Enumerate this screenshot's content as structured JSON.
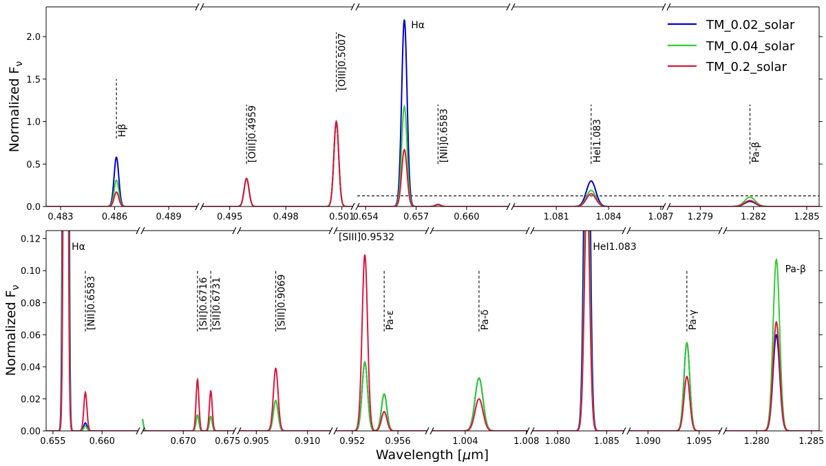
{
  "figure": {
    "ylabel": "Normalized F",
    "ylabel_sub": "ν",
    "xlabel": "Wavelength [",
    "xlabel_mu": "μ",
    "xlabel_end": "m]"
  },
  "legend_entries": [
    {
      "name": "TM_0.02_solar",
      "color": "#0000c8"
    },
    {
      "name": "TM_0.04_solar",
      "color": "#32cd32"
    },
    {
      "name": "TM_0.2_solar",
      "color": "#dc143c"
    }
  ],
  "chart_data": [
    {
      "type": "line",
      "ylim": [
        0,
        2.35
      ],
      "yticks": [
        "0.0",
        "0.5",
        "1.0",
        "1.5",
        "2.0"
      ],
      "segments": [
        {
          "xlim": [
            0.4822,
            0.4906
          ],
          "xticks": [
            "0.483",
            "0.486",
            "0.489"
          ]
        },
        {
          "xlim": [
            0.4935,
            0.5016
          ],
          "xticks": [
            "0.495",
            "0.498",
            "0.501"
          ]
        },
        {
          "xlim": [
            0.6535,
            0.6625
          ],
          "xticks": [
            "0.654",
            "0.657",
            "0.660"
          ]
        },
        {
          "xlim": [
            1.0785,
            1.0872
          ],
          "xticks": [
            "1.081",
            "1.084",
            "1.087"
          ]
        },
        {
          "xlim": [
            1.2772,
            1.2857
          ],
          "xticks": [
            "1.279",
            "1.282",
            "1.285"
          ]
        }
      ],
      "peaks": [
        {
          "seg": 0,
          "x": 0.4861,
          "sigma": 0.00013,
          "values": [
            0.58,
            0.31,
            0.17
          ]
        },
        {
          "seg": 1,
          "x": 0.4959,
          "sigma": 0.00013,
          "values": [
            0.33,
            0.33,
            0.33
          ]
        },
        {
          "seg": 1,
          "x": 0.5007,
          "sigma": 0.00013,
          "values": [
            1.0,
            1.0,
            1.0
          ]
        },
        {
          "seg": 2,
          "x": 0.6563,
          "sigma": 0.00016,
          "values": [
            2.2,
            1.18,
            0.67
          ]
        },
        {
          "seg": 2,
          "x": 0.6583,
          "sigma": 0.00016,
          "values": [
            0.02,
            0.02,
            0.025
          ]
        },
        {
          "seg": 3,
          "x": 1.083,
          "sigma": 0.00027,
          "values": [
            0.3,
            0.19,
            0.15
          ]
        },
        {
          "seg": 4,
          "x": 1.2818,
          "sigma": 0.0003,
          "values": [
            0.06,
            0.11,
            0.07
          ]
        }
      ],
      "annotations": [
        {
          "seg": 0,
          "x": 0.4861,
          "y0": 0.8,
          "y1": 1.5,
          "text": "Hβ",
          "rotated": true
        },
        {
          "seg": 1,
          "x": 0.4959,
          "y0": 0.5,
          "y1": 1.2,
          "text": "[OIII]0.4959",
          "rotated": true
        },
        {
          "seg": 1,
          "x": 0.5007,
          "y0": 1.35,
          "y1": 2.05,
          "text": "[OIII]0.5007",
          "rotated": true
        },
        {
          "seg": 2,
          "x": 0.6583,
          "y0": 0.5,
          "y1": 1.2,
          "text": "[NII]0.6583",
          "rotated": true
        },
        {
          "seg": 3,
          "x": 1.083,
          "y0": 0.5,
          "y1": 1.2,
          "text": "HeI1.083",
          "rotated": true
        },
        {
          "seg": 4,
          "x": 1.2818,
          "y0": 0.5,
          "y1": 1.2,
          "text": "Pa-β",
          "rotated": true
        }
      ],
      "free_labels": [
        {
          "seg": 2,
          "x": 0.6567,
          "y": 2.1,
          "text": "Hα"
        }
      ],
      "threshold_y": 0.125,
      "threshold_from_seg": 2
    },
    {
      "type": "line",
      "ylim": [
        0,
        0.125
      ],
      "yticks": [
        "0.00",
        "0.02",
        "0.04",
        "0.06",
        "0.08",
        "0.10",
        "0.12"
      ],
      "segments": [
        {
          "xlim": [
            0.6543,
            0.6637
          ],
          "xticks": [
            "0.655",
            "0.660"
          ]
        },
        {
          "xlim": [
            0.6654,
            0.6758
          ],
          "xticks": [
            "0.670",
            "0.675"
          ]
        },
        {
          "xlim": [
            0.9033,
            0.9123
          ],
          "xticks": [
            "0.905",
            "0.910"
          ]
        },
        {
          "xlim": [
            0.9505,
            0.9586
          ],
          "xticks": [
            "0.952",
            "0.956"
          ]
        },
        {
          "xlim": [
            1.0018,
            1.0081
          ],
          "xticks": [
            "1.004",
            "1.008"
          ]
        },
        {
          "xlim": [
            1.0774,
            1.0868
          ],
          "xticks": [
            "1.080",
            "1.085"
          ]
        },
        {
          "xlim": [
            1.0881,
            1.0971
          ],
          "xticks": [
            "1.090",
            "1.095"
          ]
        },
        {
          "xlim": [
            1.2771,
            1.2857
          ],
          "xticks": [
            "1.280",
            "1.285"
          ]
        }
      ],
      "peaks": [
        {
          "seg": 0,
          "x": 0.6563,
          "sigma": 0.00016,
          "values": [
            2.2,
            1.18,
            0.67
          ]
        },
        {
          "seg": 0,
          "x": 0.6583,
          "sigma": 0.00016,
          "values": [
            0.005,
            0.003,
            0.024
          ]
        },
        {
          "seg": 1,
          "x": 0.6653,
          "sigma": 0.00016,
          "values": [
            0.009,
            0.009,
            0.0
          ]
        },
        {
          "seg": 1,
          "x": 0.6716,
          "sigma": 0.00016,
          "values": [
            0.01,
            0.01,
            0.032
          ]
        },
        {
          "seg": 1,
          "x": 0.6731,
          "sigma": 0.00016,
          "values": [
            0.009,
            0.009,
            0.025
          ]
        },
        {
          "seg": 2,
          "x": 0.9069,
          "sigma": 0.00023,
          "values": [
            0.019,
            0.019,
            0.039
          ]
        },
        {
          "seg": 3,
          "x": 0.9531,
          "sigma": 0.00024,
          "values": [
            0.043,
            0.043,
            0.11
          ]
        },
        {
          "seg": 3,
          "x": 0.9548,
          "sigma": 0.00024,
          "values": [
            0.023,
            0.023,
            0.012
          ]
        },
        {
          "seg": 4,
          "x": 1.0049,
          "sigma": 0.00026,
          "values": [
            0.033,
            0.033,
            0.02
          ]
        },
        {
          "seg": 5,
          "x": 1.083,
          "sigma": 0.00027,
          "values": [
            0.3,
            0.19,
            0.15
          ]
        },
        {
          "seg": 6,
          "x": 1.0938,
          "sigma": 0.00028,
          "values": [
            0.055,
            0.055,
            0.034
          ]
        },
        {
          "seg": 7,
          "x": 1.2818,
          "sigma": 0.0003,
          "values": [
            0.06,
            0.107,
            0.068
          ]
        }
      ],
      "annotations": [
        {
          "seg": 0,
          "x": 0.6583,
          "y0": 0.062,
          "y1": 0.1,
          "text": "[NII]0.6583",
          "rotated": true
        },
        {
          "seg": 1,
          "x": 0.6716,
          "y0": 0.062,
          "y1": 0.1,
          "text": "[SII]0.6716",
          "rotated": true
        },
        {
          "seg": 1,
          "x": 0.6731,
          "y0": 0.062,
          "y1": 0.1,
          "text": "[SII]0.6731",
          "rotated": true
        },
        {
          "seg": 2,
          "x": 0.9069,
          "y0": 0.062,
          "y1": 0.1,
          "text": "[SIII]0.9069",
          "rotated": true
        },
        {
          "seg": 3,
          "x": 0.9548,
          "y0": 0.062,
          "y1": 0.1,
          "text": "Pa-ε",
          "rotated": true
        },
        {
          "seg": 4,
          "x": 1.0049,
          "y0": 0.062,
          "y1": 0.1,
          "text": "Pa-δ",
          "rotated": true
        },
        {
          "seg": 6,
          "x": 1.0938,
          "y0": 0.062,
          "y1": 0.1,
          "text": "Pa-γ",
          "rotated": true
        }
      ],
      "free_labels": [
        {
          "seg": 0,
          "x": 0.6569,
          "y": 0.113,
          "text": "Hα"
        },
        {
          "seg": 3,
          "x": 0.9508,
          "y": 0.119,
          "text": "[SIII]0.9532"
        },
        {
          "seg": 5,
          "x": 1.0836,
          "y": 0.113,
          "text": "HeI1.083"
        },
        {
          "seg": 7,
          "x": 1.2826,
          "y": 0.099,
          "text": "Pa-β"
        }
      ]
    }
  ]
}
